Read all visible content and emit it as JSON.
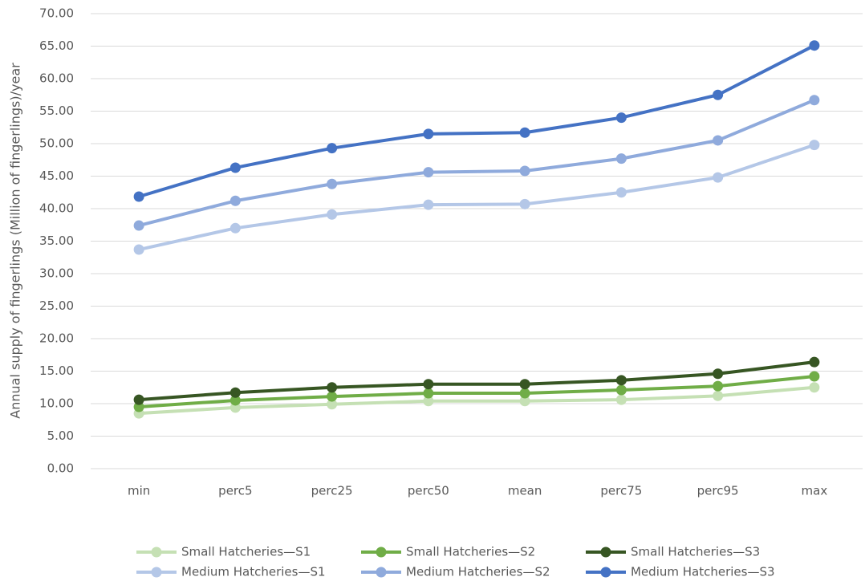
{
  "chart_data": {
    "type": "line",
    "y_label": "Annual supply of fingerlings (Million of fingerlings)/year",
    "categories": [
      "min",
      "perc5",
      "perc25",
      "perc50",
      "mean",
      "perc75",
      "perc95",
      "max"
    ],
    "series": [
      {
        "name": "Small Hatcheries—S1",
        "color": "#c5e0b4",
        "values": [
          8.5,
          9.4,
          9.9,
          10.4,
          10.4,
          10.6,
          11.2,
          12.5
        ]
      },
      {
        "name": "Small Hatcheries—S2",
        "color": "#70ad47",
        "values": [
          9.5,
          10.5,
          11.1,
          11.6,
          11.6,
          12.1,
          12.7,
          14.2
        ]
      },
      {
        "name": "Small Hatcheries—S3",
        "color": "#375623",
        "values": [
          10.6,
          11.7,
          12.5,
          13.0,
          13.0,
          13.6,
          14.6,
          16.4
        ]
      },
      {
        "name": "Medium Hatcheries—S1",
        "color": "#b4c7e7",
        "values": [
          33.7,
          37.0,
          39.1,
          40.6,
          40.7,
          42.5,
          44.8,
          49.8
        ]
      },
      {
        "name": "Medium Hatcheries—S2",
        "color": "#8faadc",
        "values": [
          37.4,
          41.2,
          43.8,
          45.6,
          45.8,
          47.7,
          50.5,
          56.7
        ]
      },
      {
        "name": "Medium Hatcheries—S3",
        "color": "#4472c4",
        "values": [
          41.85,
          46.3,
          49.3,
          51.5,
          51.7,
          54.0,
          57.5,
          65.1
        ]
      }
    ],
    "ylim": [
      0,
      70
    ],
    "yticks": [
      {
        "value": 0,
        "label": "0.00"
      },
      {
        "value": 5,
        "label": "5.00"
      },
      {
        "value": 10,
        "label": "10.00"
      },
      {
        "value": 15,
        "label": "15.00"
      },
      {
        "value": 20,
        "label": "20.00"
      },
      {
        "value": 25,
        "label": "25.00"
      },
      {
        "value": 30,
        "label": "30.00"
      },
      {
        "value": 35,
        "label": "35.00"
      },
      {
        "value": 40,
        "label": "40.00"
      },
      {
        "value": 45,
        "label": "45.00"
      },
      {
        "value": 50,
        "label": "50.00"
      },
      {
        "value": 55,
        "label": "55.00"
      },
      {
        "value": 60,
        "label": "60.00"
      },
      {
        "value": 65,
        "label": "65.00"
      },
      {
        "value": 70,
        "label": "70.00"
      }
    ],
    "grid": true,
    "legend": "bottom"
  }
}
